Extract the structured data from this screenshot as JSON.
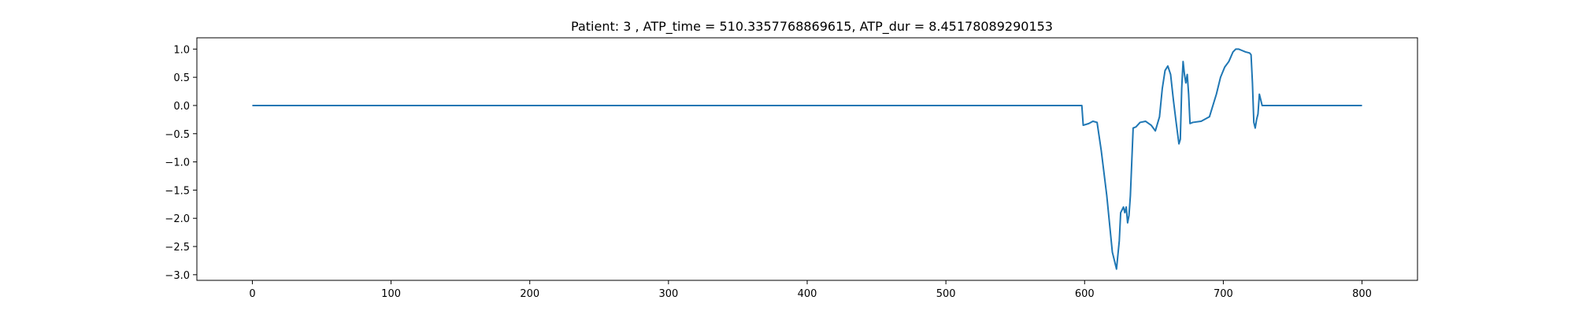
{
  "chart_data": {
    "type": "line",
    "title": "Patient: 3 , ATP_time = 510.3357768869615, ATP_dur = 8.45178089290153",
    "xlabel": "",
    "ylabel": "",
    "xlim": [
      -40,
      840
    ],
    "ylim": [
      -3.1,
      1.2
    ],
    "x_ticks": [
      0,
      100,
      200,
      300,
      400,
      500,
      600,
      700,
      800
    ],
    "y_ticks": [
      1.0,
      0.5,
      0.0,
      -0.5,
      -1.0,
      -1.5,
      -2.0,
      -2.5,
      -3.0
    ],
    "x_tick_labels": [
      "0",
      "100",
      "200",
      "300",
      "400",
      "500",
      "600",
      "700",
      "800"
    ],
    "y_tick_labels": [
      "1.0",
      "0.5",
      "0.0",
      "−0.5",
      "−1.0",
      "−1.5",
      "−2.0",
      "−2.5",
      "−3.0"
    ],
    "grid": false,
    "series": [
      {
        "color": "#1f77b4",
        "x": [
          0,
          598,
          599,
          603,
          606,
          609,
          612,
          616,
          620,
          623,
          625,
          626,
          628,
          629,
          630,
          631,
          632,
          633,
          634,
          635,
          637,
          640,
          644,
          648,
          651,
          654,
          656,
          658,
          660,
          662,
          664,
          666,
          668,
          669,
          670,
          671,
          672,
          673,
          674,
          675,
          676,
          678,
          684,
          690,
          695,
          698,
          701,
          704,
          707,
          709,
          711,
          713,
          716,
          719,
          720,
          721,
          722,
          723,
          724,
          725,
          726,
          727,
          728,
          729,
          730,
          800
        ],
        "y": [
          0.0,
          0.0,
          -0.35,
          -0.32,
          -0.28,
          -0.3,
          -0.8,
          -1.6,
          -2.6,
          -2.9,
          -2.4,
          -1.9,
          -1.8,
          -1.9,
          -1.8,
          -2.08,
          -1.95,
          -1.6,
          -1.0,
          -0.4,
          -0.38,
          -0.3,
          -0.28,
          -0.35,
          -0.45,
          -0.2,
          0.3,
          0.62,
          0.7,
          0.55,
          0.1,
          -0.3,
          -0.68,
          -0.6,
          0.3,
          0.78,
          0.55,
          0.4,
          0.55,
          0.2,
          -0.32,
          -0.3,
          -0.28,
          -0.2,
          0.2,
          0.5,
          0.68,
          0.78,
          0.95,
          1.0,
          1.0,
          0.98,
          0.95,
          0.93,
          0.9,
          0.4,
          -0.3,
          -0.4,
          -0.25,
          -0.15,
          0.2,
          0.1,
          0.0,
          0.0,
          0.0,
          0.0
        ]
      }
    ]
  }
}
